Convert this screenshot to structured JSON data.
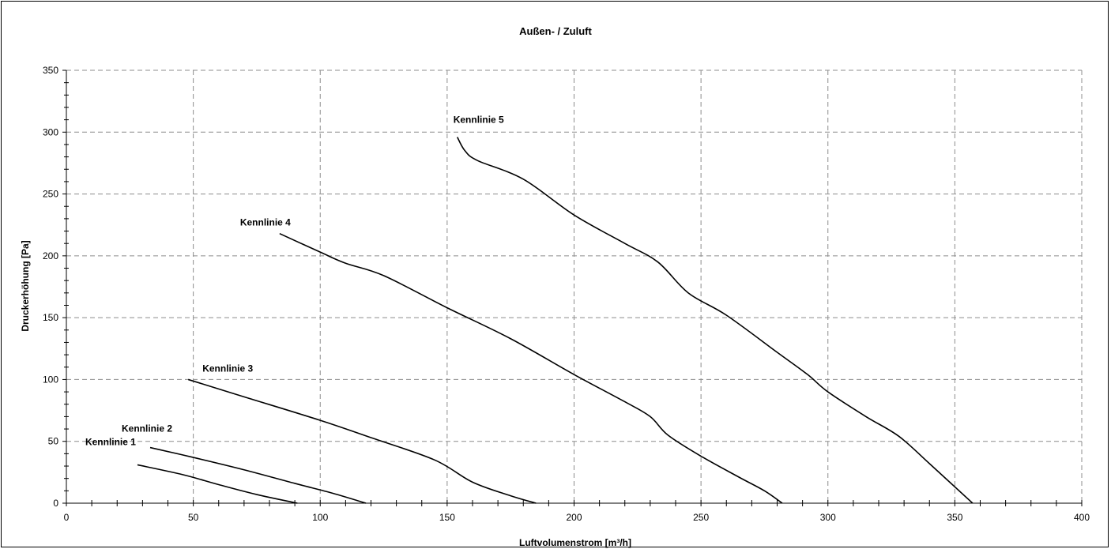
{
  "chart_data": {
    "type": "line",
    "title": "Außen- / Zuluft",
    "xlabel": "Luftvolumenstrom [m³/h]",
    "ylabel": "Druckerhöhung [Pa]",
    "xlim": [
      0,
      400
    ],
    "ylim": [
      0,
      350
    ],
    "xticks": [
      0,
      50,
      100,
      150,
      200,
      250,
      300,
      350,
      400
    ],
    "yticks": [
      0,
      50,
      100,
      150,
      200,
      250,
      300,
      350
    ],
    "grid": true,
    "series": [
      {
        "name": "Kennlinie 1",
        "x": [
          28,
          46,
          60,
          75,
          91
        ],
        "y": [
          31,
          23,
          15,
          7,
          0
        ]
      },
      {
        "name": "Kennlinie 2",
        "x": [
          33,
          50,
          70,
          90,
          105,
          118
        ],
        "y": [
          45,
          37,
          27,
          16,
          8,
          0
        ]
      },
      {
        "name": "Kennlinie 3",
        "x": [
          48,
          70,
          100,
          120,
          145,
          160,
          175,
          185
        ],
        "y": [
          100,
          86,
          67,
          53,
          35,
          17,
          6,
          0
        ]
      },
      {
        "name": "Kennlinie 4",
        "x": [
          84,
          100,
          110,
          125,
          150,
          175,
          200,
          220,
          230,
          237,
          250,
          265,
          275,
          282
        ],
        "y": [
          218,
          203,
          194,
          184,
          158,
          133,
          104,
          82,
          70,
          55,
          38,
          21,
          10,
          0
        ]
      },
      {
        "name": "Kennlinie 5",
        "x": [
          154,
          157,
          162,
          180,
          200,
          220,
          233,
          245,
          260,
          280,
          292,
          300,
          315,
          328,
          340,
          357
        ],
        "y": [
          296,
          285,
          277,
          262,
          233,
          210,
          195,
          170,
          152,
          122,
          104,
          90,
          70,
          54,
          32,
          0
        ]
      }
    ]
  }
}
